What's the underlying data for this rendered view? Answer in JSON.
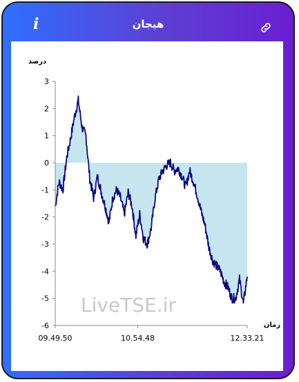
{
  "header": {
    "title": "هیجان",
    "info_icon": "info-icon",
    "link_icon": "link-icon"
  },
  "colors": {
    "line": "#0a0a7a",
    "fill": "#c6e5ef",
    "bg_start": "#2f6fff",
    "bg_end": "#6a1fd1"
  },
  "watermark": "LiveTSE.ir",
  "chart_data": {
    "type": "area",
    "ylabel": "درصد",
    "xlabel": "زمان",
    "ylim": [
      -6,
      3
    ],
    "yticks": [
      "3",
      "2",
      "1",
      "0",
      "-1",
      "-2",
      "-3",
      "-4",
      "-5",
      "-6"
    ],
    "xticks": [
      "09.49.50",
      "10.54.48",
      "12.33.21"
    ],
    "x": [
      0,
      0.02,
      0.04,
      0.06,
      0.08,
      0.1,
      0.12,
      0.14,
      0.16,
      0.18,
      0.2,
      0.22,
      0.24,
      0.26,
      0.28,
      0.3,
      0.32,
      0.34,
      0.36,
      0.38,
      0.4,
      0.42,
      0.44,
      0.46,
      0.48,
      0.5,
      0.52,
      0.54,
      0.56,
      0.58,
      0.6,
      0.62,
      0.64,
      0.66,
      0.68,
      0.7,
      0.72,
      0.74,
      0.76,
      0.78,
      0.8,
      0.82,
      0.84,
      0.86,
      0.88,
      0.9,
      0.92,
      0.94,
      0.96,
      0.98,
      1.0
    ],
    "values": [
      -1.6,
      -0.7,
      -1.0,
      0.2,
      0.9,
      1.7,
      2.3,
      1.3,
      1.0,
      -0.6,
      -1.3,
      -0.5,
      -1.1,
      -1.6,
      -2.2,
      -1.3,
      -1.0,
      -1.3,
      -1.9,
      -1.1,
      -1.6,
      -2.7,
      -1.9,
      -2.8,
      -3.0,
      -2.4,
      -1.3,
      -0.6,
      -0.3,
      -0.1,
      0.0,
      -0.3,
      -0.2,
      -0.5,
      -0.9,
      -0.3,
      -0.7,
      -1.2,
      -1.8,
      -2.3,
      -3.1,
      -3.6,
      -3.8,
      -4.0,
      -4.4,
      -4.6,
      -5.0,
      -5.0,
      -4.3,
      -5.2,
      -4.2
    ]
  }
}
